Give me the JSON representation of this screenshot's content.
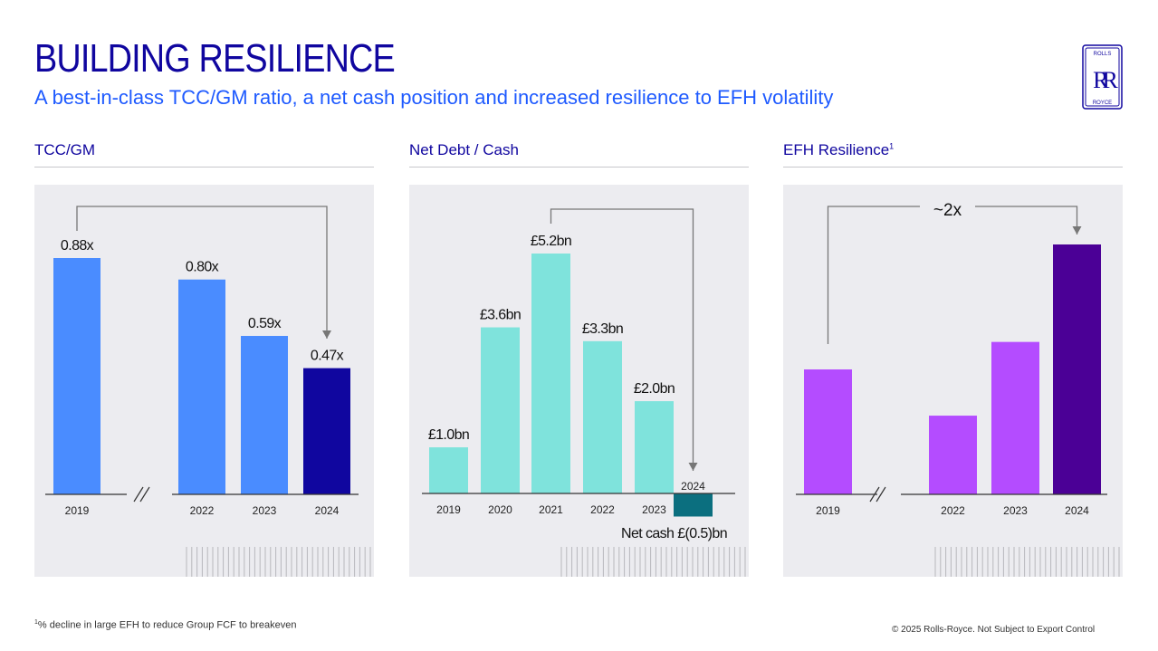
{
  "header": {
    "title": "BUILDING RESILIENCE",
    "subtitle": "A best-in-class TCC/GM ratio, a net cash position and increased resilience to EFH volatility",
    "logo_top": "ROLLS",
    "logo_mono": "RR",
    "logo_bottom": "ROYCE"
  },
  "sections": {
    "tcc": "TCC/GM",
    "net": "Net Debt / Cash",
    "efh": "EFH Resilience",
    "efh_sup": "1"
  },
  "chart_data": [
    {
      "type": "bar",
      "title": "TCC/GM",
      "categories": [
        "2019",
        "2022",
        "2023",
        "2024"
      ],
      "values": [
        0.88,
        0.8,
        0.59,
        0.47
      ],
      "value_labels": [
        "0.88x",
        "0.80x",
        "0.59x",
        "0.47x"
      ],
      "colors": [
        "#4a8cff",
        "#4a8cff",
        "#4a8cff",
        "#10069f"
      ],
      "axis_break_after": "2019",
      "ylim": [
        0,
        0.88
      ],
      "arrow": {
        "from": "2019",
        "to": "2024"
      }
    },
    {
      "type": "bar",
      "title": "Net Debt / Cash",
      "categories": [
        "2019",
        "2020",
        "2021",
        "2022",
        "2023",
        "2024"
      ],
      "values": [
        1.0,
        3.6,
        5.2,
        3.3,
        2.0,
        -0.5
      ],
      "value_labels": [
        "£1.0bn",
        "£3.6bn",
        "£5.2bn",
        "£3.3bn",
        "£2.0bn",
        "Net cash £(0.5)bn"
      ],
      "colors": [
        "#7fe3dc",
        "#7fe3dc",
        "#7fe3dc",
        "#7fe3dc",
        "#7fe3dc",
        "#0b6f7f"
      ],
      "unit": "£bn",
      "ylim": [
        -0.5,
        5.2
      ],
      "arrow": {
        "from": "2021",
        "to": "2024"
      }
    },
    {
      "type": "bar",
      "title": "EFH Resilience",
      "categories": [
        "2019",
        "2022",
        "2023",
        "2024"
      ],
      "values": [
        1.0,
        0.63,
        1.22,
        2.0
      ],
      "colors": [
        "#b44cff",
        "#b44cff",
        "#b44cff",
        "#4b0096"
      ],
      "axis_break_after": "2019",
      "ylim": [
        0,
        2.0
      ],
      "arrow": {
        "from": "2019",
        "to": "2024",
        "label": "~2x"
      }
    }
  ],
  "footer": {
    "footnote_sup": "1",
    "footnote": "% decline in large EFH to reduce Group FCF to breakeven",
    "copyright": "© 2025 Rolls-Royce. Not Subject to Export Control"
  }
}
